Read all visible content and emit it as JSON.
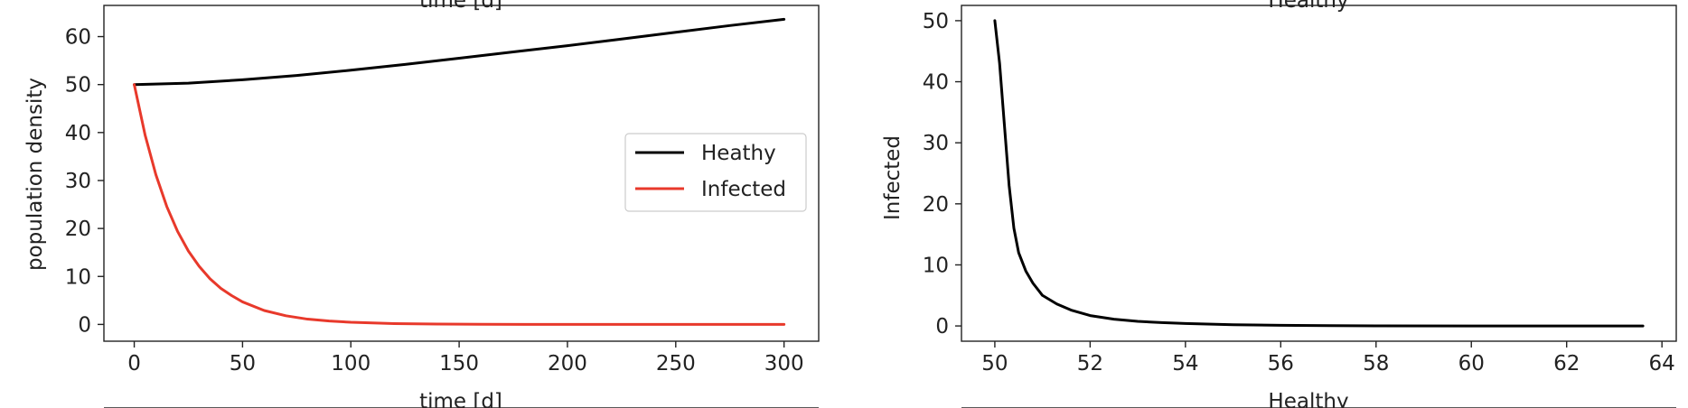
{
  "chart_data": [
    {
      "type": "line",
      "title": "",
      "xlabel": "time [d]",
      "ylabel": "population density",
      "top_cut_label": "time [d]",
      "xlim": [
        -14,
        316
      ],
      "ylim": [
        -3.5,
        66.5
      ],
      "xticks": [
        0,
        50,
        100,
        150,
        200,
        250,
        300
      ],
      "yticks": [
        0,
        10,
        20,
        30,
        40,
        50,
        60
      ],
      "grid": false,
      "legend_position": "center-right",
      "series": [
        {
          "name": "Heathy",
          "color": "#000000",
          "x": [
            0,
            25,
            50,
            75,
            100,
            125,
            150,
            175,
            200,
            225,
            250,
            275,
            300
          ],
          "y": [
            50,
            50.3,
            51.0,
            51.9,
            53.0,
            54.2,
            55.5,
            56.8,
            58.1,
            59.5,
            60.9,
            62.3,
            63.6
          ]
        },
        {
          "name": "Infected",
          "color": "#e8392b",
          "x": [
            0,
            5,
            10,
            15,
            20,
            25,
            30,
            35,
            40,
            45,
            50,
            60,
            70,
            80,
            90,
            100,
            120,
            140,
            160,
            180,
            200,
            250,
            300
          ],
          "y": [
            50,
            39.5,
            31.2,
            24.6,
            19.4,
            15.3,
            12.1,
            9.5,
            7.5,
            6.0,
            4.7,
            2.9,
            1.8,
            1.1,
            0.7,
            0.45,
            0.18,
            0.07,
            0.03,
            0.01,
            0.0,
            0.0,
            0.0
          ]
        }
      ]
    },
    {
      "type": "line",
      "title": "",
      "xlabel": "Healthy",
      "ylabel": "Infected",
      "top_cut_label": "Healthy",
      "xlim": [
        49.3,
        64.3
      ],
      "ylim": [
        -2.5,
        52.5
      ],
      "xticks": [
        50,
        52,
        54,
        56,
        58,
        60,
        62,
        64
      ],
      "xtick_labels": [
        "50",
        "52",
        "54",
        "56",
        "58",
        "60",
        "62",
        "64"
      ],
      "yticks": [
        0,
        10,
        20,
        30,
        40,
        50
      ],
      "grid": false,
      "series": [
        {
          "color": "#000000",
          "x": [
            50.0,
            50.1,
            50.2,
            50.3,
            50.4,
            50.5,
            50.65,
            50.8,
            51.0,
            51.3,
            51.6,
            52.0,
            52.5,
            53.0,
            53.5,
            54.0,
            55.0,
            56.0,
            57.0,
            58.0,
            60.0,
            62.0,
            63.6
          ],
          "y": [
            50.0,
            43.0,
            33.0,
            23.0,
            16.0,
            12.0,
            9.0,
            7.0,
            5.0,
            3.6,
            2.6,
            1.7,
            1.1,
            0.75,
            0.55,
            0.4,
            0.2,
            0.1,
            0.05,
            0.02,
            0.0,
            0.0,
            0.0
          ]
        }
      ]
    }
  ]
}
